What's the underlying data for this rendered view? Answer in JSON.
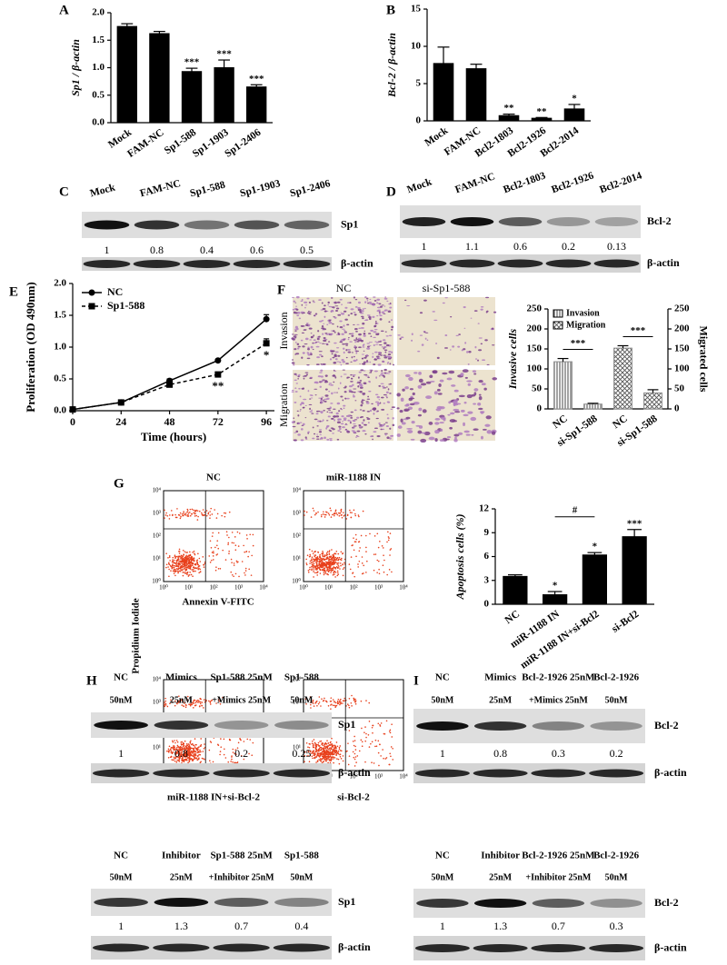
{
  "panel_letters": [
    "A",
    "B",
    "C",
    "D",
    "E",
    "F",
    "G",
    "H",
    "I"
  ],
  "chart_data": [
    {
      "type": "bar",
      "ylabel": "Sp1 / β-actin",
      "categories": [
        "Mock",
        "FAM-NC",
        "Sp1-588",
        "Sp1-1903",
        "Sp1-2406"
      ],
      "values": [
        1.75,
        1.62,
        0.93,
        1.0,
        0.65
      ],
      "errors": [
        0.05,
        0.04,
        0.06,
        0.14,
        0.04
      ],
      "annotations": [
        null,
        null,
        "***",
        "***",
        "***"
      ],
      "color": "#000000",
      "ylim": [
        0,
        2
      ],
      "yticks": [
        {
          "value": 0,
          "label": "0.0"
        },
        0.5,
        {
          "value": 1,
          "label": "1.0"
        },
        1.5,
        {
          "value": 2,
          "label": "2.0"
        }
      ]
    },
    {
      "type": "bar",
      "ylabel": "Bcl-2 / β-actin",
      "categories": [
        "Mock",
        "FAM-NC",
        "Bcl2-1803",
        "Bcl2-1926",
        "Bcl2-2014"
      ],
      "values": [
        7.7,
        7.0,
        0.7,
        0.35,
        1.6
      ],
      "errors": [
        2.2,
        0.6,
        0.2,
        0.1,
        0.6
      ],
      "annotations": [
        null,
        null,
        "**",
        "**",
        "*"
      ],
      "color": "#000000",
      "ylim": [
        0,
        15
      ],
      "yticks": [
        0,
        5,
        10,
        15
      ]
    },
    {
      "type": "line",
      "ylabel": "Proliferation (OD 490nm)",
      "xlabel": "Time (hours)",
      "x": [
        0,
        24,
        48,
        72,
        96
      ],
      "xlim": [
        0,
        100
      ],
      "xticks": [
        0,
        24,
        48,
        72,
        96
      ],
      "ylim": [
        0,
        2
      ],
      "yticks": [
        {
          "value": 0,
          "label": "0.0"
        },
        0.5,
        {
          "value": 1,
          "label": "1.0"
        },
        1.5,
        {
          "value": 2,
          "label": "2.0"
        }
      ],
      "legend": "top-left",
      "series": [
        {
          "name": "NC",
          "color": "#000000",
          "marker": "circle",
          "dashed": false,
          "values": [
            0.02,
            0.13,
            0.47,
            0.79,
            1.44
          ],
          "errors": [
            0.01,
            0.01,
            0.03,
            0.02,
            0.07
          ]
        },
        {
          "name": "Sp1-588",
          "color": "#000000",
          "marker": "square",
          "dashed": true,
          "values": [
            0.02,
            0.13,
            0.41,
            0.57,
            1.06
          ],
          "errors": [
            0.01,
            0.01,
            0.02,
            0.03,
            0.07
          ]
        }
      ],
      "annotations": [
        {
          "x": 72,
          "text": "**"
        },
        {
          "x": 96,
          "text": "*"
        }
      ]
    },
    {
      "type": "bar",
      "ylabel": "Invasive cells",
      "y2label": "Migrated cells",
      "categories": [
        "NC",
        "si-Sp1-588",
        "NC",
        "si-Sp1-588"
      ],
      "ylim": [
        0,
        250
      ],
      "yticks": [
        0,
        50,
        100,
        150,
        200,
        250
      ],
      "y2lim": [
        0,
        250
      ],
      "y2ticks": [
        0,
        50,
        100,
        150,
        200,
        250
      ],
      "legend": "top-left",
      "series": [
        {
          "name": "Invasion",
          "color": "#8c8c8c",
          "pattern": "lines",
          "values": [
            118,
            12,
            null,
            null
          ],
          "errors": [
            8,
            2,
            null,
            null
          ]
        },
        {
          "name": "Migration",
          "color": "#8c8c8c",
          "pattern": "cross",
          "axis": "y2",
          "values": [
            null,
            null,
            152,
            40
          ],
          "errors": [
            null,
            null,
            6,
            8
          ]
        }
      ],
      "annotations": [
        "***",
        "***"
      ]
    },
    {
      "type": "bar",
      "ylabel": "Apoptosis cells (%)",
      "categories": [
        "NC",
        "miR-1188 IN",
        "miR-1188 IN+si-Bcl2",
        "si-Bcl2"
      ],
      "values": [
        3.5,
        1.2,
        6.2,
        8.5
      ],
      "errors": [
        0.2,
        0.4,
        0.3,
        0.9
      ],
      "annotations": [
        null,
        "*",
        "*",
        "***"
      ],
      "bracket_annotation": "#",
      "color": "#000000",
      "ylim": [
        0,
        12
      ],
      "yticks": [
        0,
        3,
        6,
        9,
        12
      ]
    }
  ],
  "micrographs": {
    "columns": [
      "NC",
      "si-Sp1-588"
    ],
    "rows": [
      "Invasion",
      "Migration"
    ]
  },
  "flow_cytometry": {
    "plots": [
      "NC",
      "miR-1188 IN",
      "miR-1188 IN+si-Bcl-2",
      "si-Bcl-2"
    ],
    "xlabel": "Annexin V-FITC",
    "ylabel": "Propidium Iodide",
    "ticks": [
      "10⁰",
      "10¹",
      "10²",
      "10³",
      "10⁴"
    ]
  },
  "blots": [
    {
      "lanes": [
        "Mock",
        "FAM-NC",
        "Sp1-588",
        "Sp1-1903",
        "Sp1-2406"
      ],
      "values": [
        "1",
        "0.8",
        "0.4",
        "0.6",
        "0.5"
      ],
      "proteins": [
        "Sp1",
        "β-actin"
      ]
    },
    {
      "lanes": [
        "Mock",
        "FAM-NC",
        "Bcl2-1803",
        "Bcl2-1926",
        "Bcl2-2014"
      ],
      "values": [
        "1",
        "1.1",
        "0.6",
        "0.2",
        "0.13"
      ],
      "proteins": [
        "Bcl-2",
        "β-actin"
      ]
    },
    {
      "lanes": [
        "NC",
        "Mimics",
        "Sp1-588 25nM",
        "Sp1-588"
      ],
      "lanes_sub": [
        "50nM",
        "25nM",
        "+Mimics 25nM",
        "50nM"
      ],
      "values": [
        "1",
        "0.8",
        "0.2",
        "0.25"
      ],
      "proteins": [
        "Sp1",
        "β-actin"
      ]
    },
    {
      "lanes": [
        "NC",
        "Inhibitor",
        "Sp1-588 25nM",
        "Sp1-588"
      ],
      "lanes_sub": [
        "50nM",
        "25nM",
        "+Inhibitor 25nM",
        "50nM"
      ],
      "values": [
        "1",
        "1.3",
        "0.7",
        "0.4"
      ],
      "proteins": [
        "Sp1",
        "β-actin"
      ]
    },
    {
      "lanes": [
        "NC",
        "Mimics",
        "Bcl-2-1926 25nM",
        "Bcl-2-1926"
      ],
      "lanes_sub": [
        "50nM",
        "25nM",
        "+Mimics 25nM",
        "50nM"
      ],
      "values": [
        "1",
        "0.8",
        "0.3",
        "0.2"
      ],
      "proteins": [
        "Bcl-2",
        "β-actin"
      ]
    },
    {
      "lanes": [
        "NC",
        "Inhibitor",
        "Bcl-2-1926 25nM",
        "Bcl-2-1926"
      ],
      "lanes_sub": [
        "50nM",
        "25nM",
        "+Inhibitor 25nM",
        "50nM"
      ],
      "values": [
        "1",
        "1.3",
        "0.7",
        "0.3"
      ],
      "proteins": [
        "Bcl-2",
        "β-actin"
      ]
    }
  ]
}
